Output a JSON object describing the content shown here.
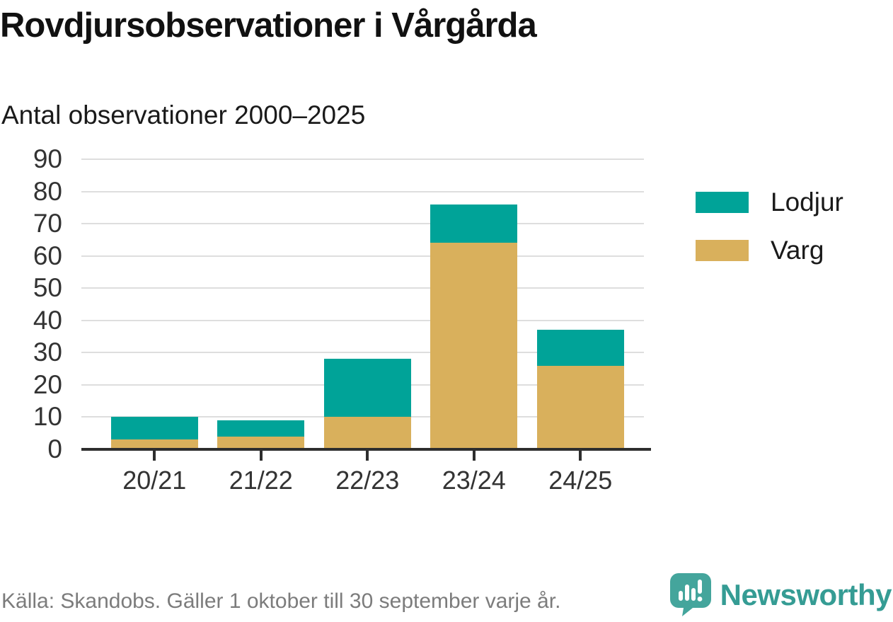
{
  "title": "Rovdjursobservationer i Vårgårda",
  "subtitle": "Antal observationer 2000–2025",
  "chart_data": {
    "type": "bar",
    "stacked": true,
    "title": "Rovdjursobservationer i Vårgårda",
    "subtitle": "Antal observationer 2000–2025",
    "categories": [
      "20/21",
      "21/22",
      "22/23",
      "23/24",
      "24/25"
    ],
    "series": [
      {
        "name": "Varg",
        "color": "#d9b05c",
        "values": [
          3,
          4,
          10,
          64,
          26
        ]
      },
      {
        "name": "Lodjur",
        "color": "#00a398",
        "values": [
          7,
          5,
          18,
          12,
          11
        ]
      }
    ],
    "stack_order_bottom_to_top": [
      "Varg",
      "Lodjur"
    ],
    "totals": [
      10,
      9,
      28,
      76,
      37
    ],
    "xlabel": "",
    "ylabel": "",
    "ylim": [
      0,
      90
    ],
    "y_ticks": [
      0,
      10,
      20,
      30,
      40,
      50,
      60,
      70,
      80,
      90
    ],
    "grid": "horizontal",
    "legend_position": "right"
  },
  "legend": [
    {
      "label": "Lodjur",
      "color": "#00a398"
    },
    {
      "label": "Varg",
      "color": "#d9b05c"
    }
  ],
  "footer": {
    "source": "Källa: Skandobs. Gäller 1 oktober till 30 september varje år.",
    "brand": "Newsworthy"
  },
  "colors": {
    "lodjur": "#00a398",
    "varg": "#d9b05c",
    "axis": "#2e2e2e",
    "grid": "#dedede",
    "tick_text": "#333333",
    "muted_text": "#7c7c7c",
    "brand_teal": "#359c94"
  },
  "icons": {
    "brand_icon": "newsworthy-speech-bubble-bar-chart-icon"
  }
}
